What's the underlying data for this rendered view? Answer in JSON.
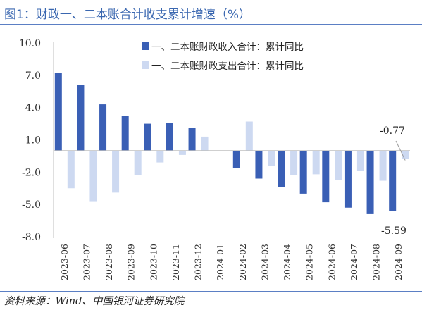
{
  "page": {
    "title": "图1：财政一、二本账合计收支累计增速（%）",
    "source": "资料来源：Wind、中国银河证券研究院"
  },
  "colors": {
    "revenue": "#3a5fb5",
    "expenditure": "#cdd9f1",
    "axis": "#bfbfbf",
    "title": "#3a67b0"
  },
  "chart_data": {
    "type": "bar",
    "categories": [
      "2023-06",
      "2023-07",
      "2023-08",
      "2023-09",
      "2023-10",
      "2023-11",
      "2023-12",
      "2024-01",
      "2024-02",
      "2024-03",
      "2024-04",
      "2024-05",
      "2024-06",
      "2024-07",
      "2024-08",
      "2024-09"
    ],
    "series": [
      {
        "name": "一、二本账财政收入合计：累计同比",
        "values": [
          7.2,
          6.1,
          4.3,
          3.2,
          2.5,
          2.6,
          2.1,
          null,
          -1.6,
          -2.6,
          -3.4,
          -4.0,
          -4.8,
          -5.3,
          -5.9,
          -5.59
        ]
      },
      {
        "name": "一、二本账财政支出合计：累计同比",
        "values": [
          -3.5,
          -4.7,
          -3.9,
          -2.3,
          -1.1,
          -0.4,
          1.3,
          null,
          2.7,
          -1.4,
          -2.3,
          -2.2,
          -2.7,
          -1.9,
          -2.8,
          -0.77
        ]
      }
    ],
    "yticks": [
      "10.0",
      "7.0",
      "4.0",
      "1.0",
      "-2.0",
      "-5.0",
      "-8.0"
    ],
    "ylim": [
      -8,
      10
    ],
    "annotations": [
      {
        "text": "-0.77"
      },
      {
        "text": "-5.59"
      }
    ],
    "legend_position": "top-right",
    "grid": false
  }
}
